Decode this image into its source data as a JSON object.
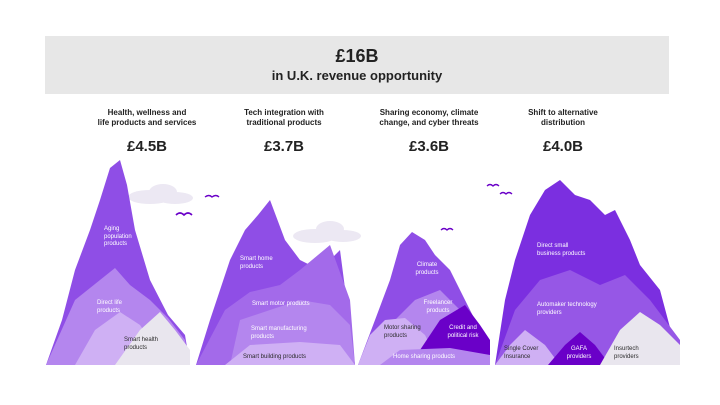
{
  "header": {
    "total": "£16B",
    "subtitle": "in U.K. revenue opportunity"
  },
  "columns": [
    {
      "title_line1": "Health, wellness and",
      "title_line2": "life products and services",
      "amount": "£4.5B",
      "labels": {
        "aging_l1": "Aging",
        "aging_l2": "population",
        "aging_l3": "products",
        "direct_l1": "Direct life",
        "direct_l2": "products",
        "smart_health_l1": "Smart health",
        "smart_health_l2": "products"
      }
    },
    {
      "title_line1": "Tech integration with",
      "title_line2": "traditional products",
      "amount": "£3.7B",
      "labels": {
        "smart_home_l1": "Smart home",
        "smart_home_l2": "products",
        "smart_motor": "Smart motor products",
        "smart_manufacturing_l1": "Smart manufacturing",
        "smart_manufacturing_l2": "products",
        "smart_building": "Smart building products"
      }
    },
    {
      "title_line1": "Sharing economy, climate",
      "title_line2": "change, and cyber threats",
      "amount": "£3.6B",
      "labels": {
        "climate_l1": "Climate",
        "climate_l2": "products",
        "freelancer_l1": "Freelancer",
        "freelancer_l2": "products",
        "motor_sharing_l1": "Motor sharing",
        "motor_sharing_l2": "products",
        "credit_l1": "Credit and",
        "credit_l2": "political risk",
        "home_sharing": "Home sharing products"
      }
    },
    {
      "title_line1": "Shift to alternative",
      "title_line2": "distribution",
      "amount": "£4.0B",
      "labels": {
        "direct_small_l1": "Direct small",
        "direct_small_l2": "business products",
        "automaker_l1": "Automaker technology",
        "automaker_l2": "providers",
        "single_cover_l1": "Single Cover",
        "single_cover_l2": "Insurance",
        "gafa_l1": "GAFA",
        "gafa_l2": "providers",
        "insurtech_l1": "Insurtech",
        "insurtech_l2": "providers"
      }
    }
  ],
  "colors": {
    "banner_bg": "#e7e7e7",
    "purple_dark": "#7b2fe0",
    "purple_mid": "#9657e6",
    "purple_light": "#b486ee",
    "purple_pale": "#cfb0f4",
    "grey_peak": "#e9e6ee",
    "deep_purple": "#6a00c8"
  }
}
